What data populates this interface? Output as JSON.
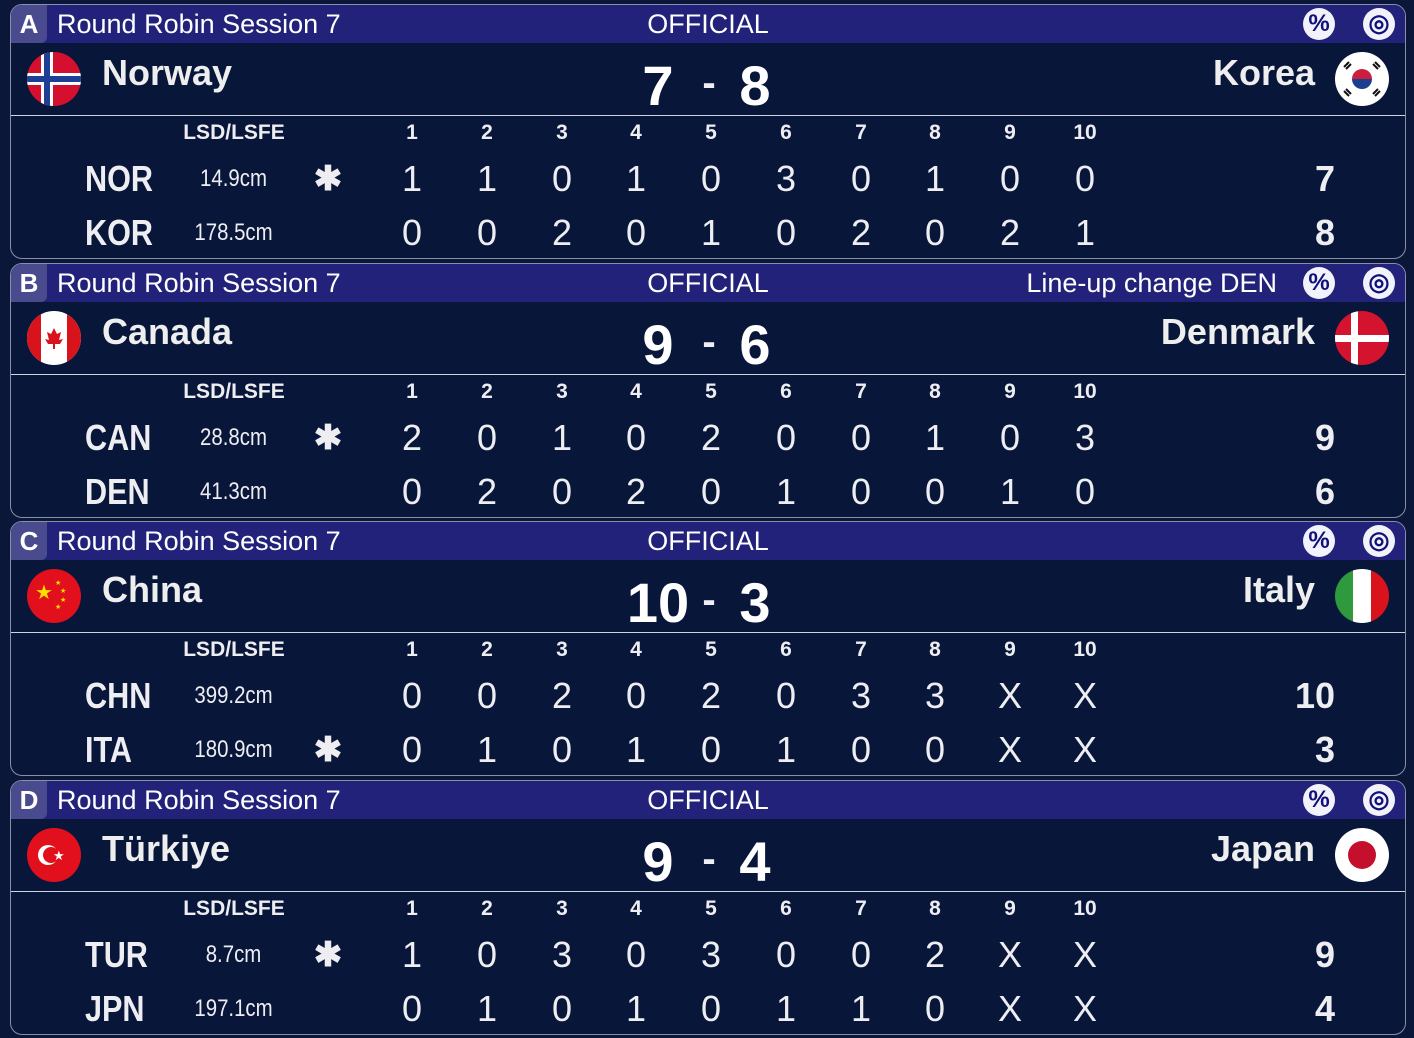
{
  "header": {
    "ends": [
      "1",
      "2",
      "3",
      "4",
      "5",
      "6",
      "7",
      "8",
      "9",
      "10"
    ],
    "lsd_label": "LSD/LSFE",
    "hammer_symbol": "✱",
    "dash": "-"
  },
  "icons": {
    "percent": "%",
    "target": "◎"
  },
  "colors": {
    "background": "#0b1738",
    "header_bar": "#22227a",
    "sheet_badge": "#4a4a8e"
  },
  "games": [
    {
      "sheet": "A",
      "session": "Round Robin Session 7",
      "status": "OFFICIAL",
      "note": "",
      "home": {
        "name": "Norway",
        "flag": "norway",
        "code": "NOR",
        "lsd": "14.9cm",
        "hammer": true,
        "score": "7",
        "ends": [
          "1",
          "1",
          "0",
          "1",
          "0",
          "3",
          "0",
          "1",
          "0",
          "0"
        ],
        "total": "7"
      },
      "away": {
        "name": "Korea",
        "flag": "korea",
        "code": "KOR",
        "lsd": "178.5cm",
        "hammer": false,
        "score": "8",
        "ends": [
          "0",
          "0",
          "2",
          "0",
          "1",
          "0",
          "2",
          "0",
          "2",
          "1"
        ],
        "total": "8"
      }
    },
    {
      "sheet": "B",
      "session": "Round Robin Session 7",
      "status": "OFFICIAL",
      "note": "Line-up change DEN",
      "home": {
        "name": "Canada",
        "flag": "canada",
        "code": "CAN",
        "lsd": "28.8cm",
        "hammer": true,
        "score": "9",
        "ends": [
          "2",
          "0",
          "1",
          "0",
          "2",
          "0",
          "0",
          "1",
          "0",
          "3"
        ],
        "total": "9"
      },
      "away": {
        "name": "Denmark",
        "flag": "denmark",
        "code": "DEN",
        "lsd": "41.3cm",
        "hammer": false,
        "score": "6",
        "ends": [
          "0",
          "2",
          "0",
          "2",
          "0",
          "1",
          "0",
          "0",
          "1",
          "0"
        ],
        "total": "6"
      }
    },
    {
      "sheet": "C",
      "session": "Round Robin Session 7",
      "status": "OFFICIAL",
      "note": "",
      "home": {
        "name": "China",
        "flag": "china",
        "code": "CHN",
        "lsd": "399.2cm",
        "hammer": false,
        "score": "10",
        "ends": [
          "0",
          "0",
          "2",
          "0",
          "2",
          "0",
          "3",
          "3",
          "X",
          "X"
        ],
        "total": "10"
      },
      "away": {
        "name": "Italy",
        "flag": "italy",
        "code": "ITA",
        "lsd": "180.9cm",
        "hammer": true,
        "score": "3",
        "ends": [
          "0",
          "1",
          "0",
          "1",
          "0",
          "1",
          "0",
          "0",
          "X",
          "X"
        ],
        "total": "3"
      }
    },
    {
      "sheet": "D",
      "session": "Round Robin Session 7",
      "status": "OFFICIAL",
      "note": "",
      "home": {
        "name": "Türkiye",
        "flag": "turkey",
        "code": "TUR",
        "lsd": "8.7cm",
        "hammer": true,
        "score": "9",
        "ends": [
          "1",
          "0",
          "3",
          "0",
          "3",
          "0",
          "0",
          "2",
          "X",
          "X"
        ],
        "total": "9"
      },
      "away": {
        "name": "Japan",
        "flag": "japan",
        "code": "JPN",
        "lsd": "197.1cm",
        "hammer": false,
        "score": "4",
        "ends": [
          "0",
          "1",
          "0",
          "1",
          "0",
          "1",
          "1",
          "0",
          "X",
          "X"
        ],
        "total": "4"
      }
    }
  ]
}
